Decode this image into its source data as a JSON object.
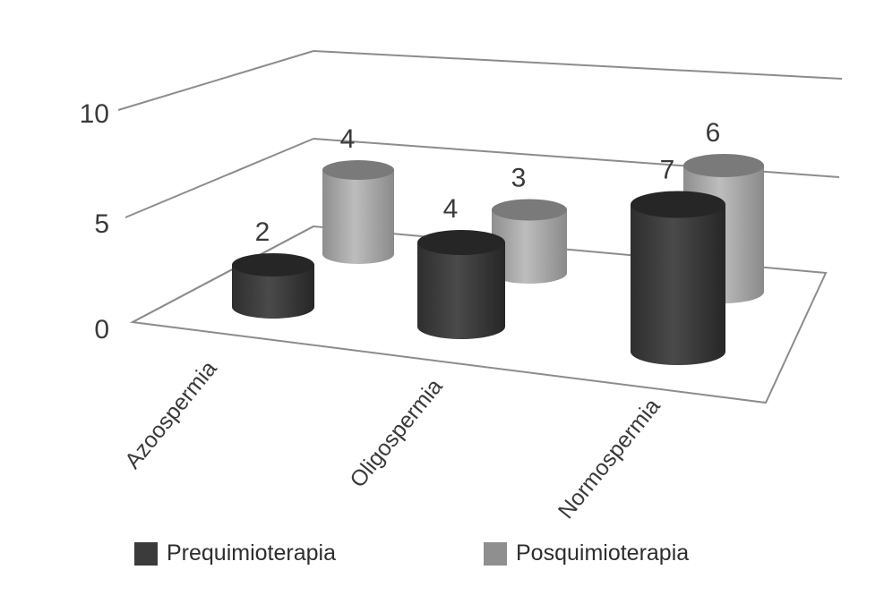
{
  "chart_data": {
    "type": "bar",
    "style": "3d-cylinder",
    "categories": [
      "Azoospermia",
      "Oligospermia",
      "Normospermia"
    ],
    "series": [
      {
        "name": "Prequimioterapia",
        "values": [
          2,
          4,
          7
        ],
        "color": "#3b3b3b"
      },
      {
        "name": "Posquimioterapia",
        "values": [
          4,
          3,
          6
        ],
        "color": "#9a9a9a"
      }
    ],
    "yticks": [
      "0",
      "5",
      "10"
    ],
    "ylim": [
      0,
      10
    ],
    "grid": true,
    "legend_position": "bottom"
  }
}
